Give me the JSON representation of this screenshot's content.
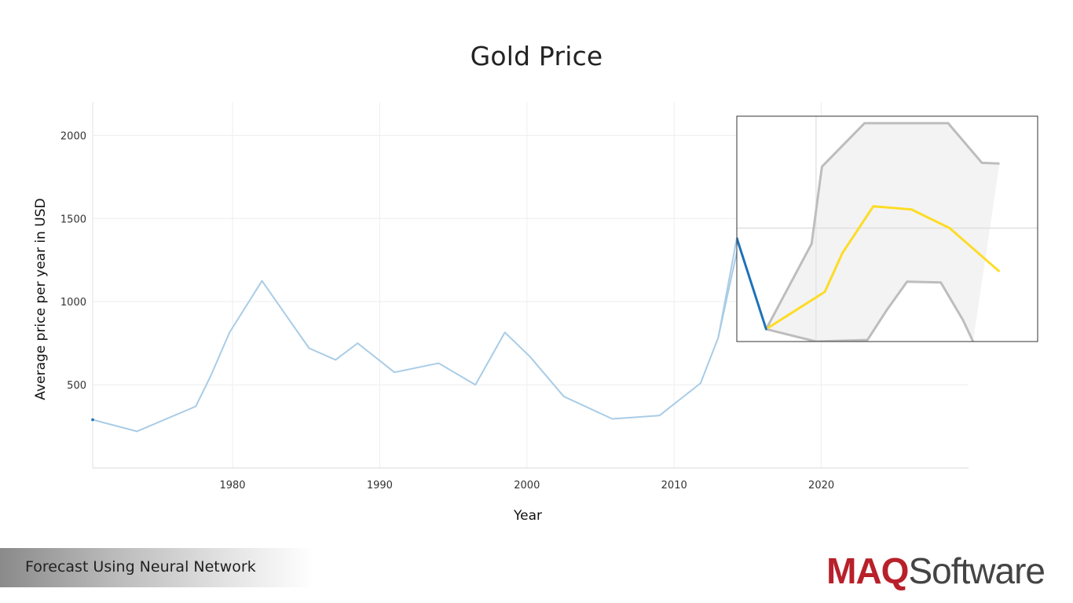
{
  "colors": {
    "history_line": "#a9cce6",
    "history_highlight": "#1f72b8",
    "forecast_line": "#fddc25",
    "band_fill": "#f3f3f3",
    "band_bounds": "#bdbdbd",
    "grid": "#eeeeee",
    "brand_red": "#b8202a",
    "brand_gray": "#444444"
  },
  "footer": {
    "caption": "Forecast Using Neural Network"
  },
  "logo": {
    "part1": "MAQ",
    "part2": "Software"
  },
  "chart_data": {
    "type": "line",
    "title": "Gold Price",
    "xlabel": "Year",
    "ylabel": "Average price per year in USD",
    "xlim": [
      1970.5,
      2030
    ],
    "ylim": [
      0,
      2200
    ],
    "x_ticks": [
      1980,
      1990,
      2000,
      2010,
      2020
    ],
    "y_ticks": [
      500,
      1000,
      1500,
      2000
    ],
    "grid": true,
    "series": [
      {
        "role": "history",
        "x": [
          1970.5,
          1973.5,
          1977.5,
          1978.5,
          1979.8,
          1982,
          1985.2,
          1987,
          1988.5,
          1991,
          1994,
          1996.5,
          1998.5,
          2000.2,
          2002.5,
          2005.8,
          2009,
          2011.8,
          2013,
          2014.6,
          2016.6
        ],
        "y": [
          290,
          220,
          370,
          550,
          815,
          1125,
          720,
          650,
          750,
          575,
          630,
          500,
          815,
          670,
          430,
          295,
          315,
          510,
          785,
          1435,
          850
        ]
      },
      {
        "role": "forecast",
        "x": [
          2016.6,
          2020.6,
          2021.8,
          2023.9,
          2026.5,
          2029.1,
          2032.5
        ],
        "y": [
          850,
          1090,
          1340,
          1640,
          1620,
          1500,
          1220
        ]
      },
      {
        "role": "upper_bound",
        "x": [
          2016.6,
          2019.7,
          2020.4,
          2023.3,
          2029,
          2031.3,
          2032.5
        ],
        "y": [
          850,
          1400,
          1895,
          2175,
          2175,
          1920,
          1915
        ]
      },
      {
        "role": "lower_bound",
        "x": [
          2016.6,
          2020,
          2023.5,
          2024.8,
          2026.2,
          2028.5,
          2030,
          2030.7
        ],
        "y": [
          850,
          770,
          780,
          970,
          1155,
          1150,
          910,
          770
        ]
      }
    ],
    "inset": {
      "x_range": [
        2014.6,
        2035.1
      ],
      "y_range": [
        770,
        2220
      ]
    }
  }
}
